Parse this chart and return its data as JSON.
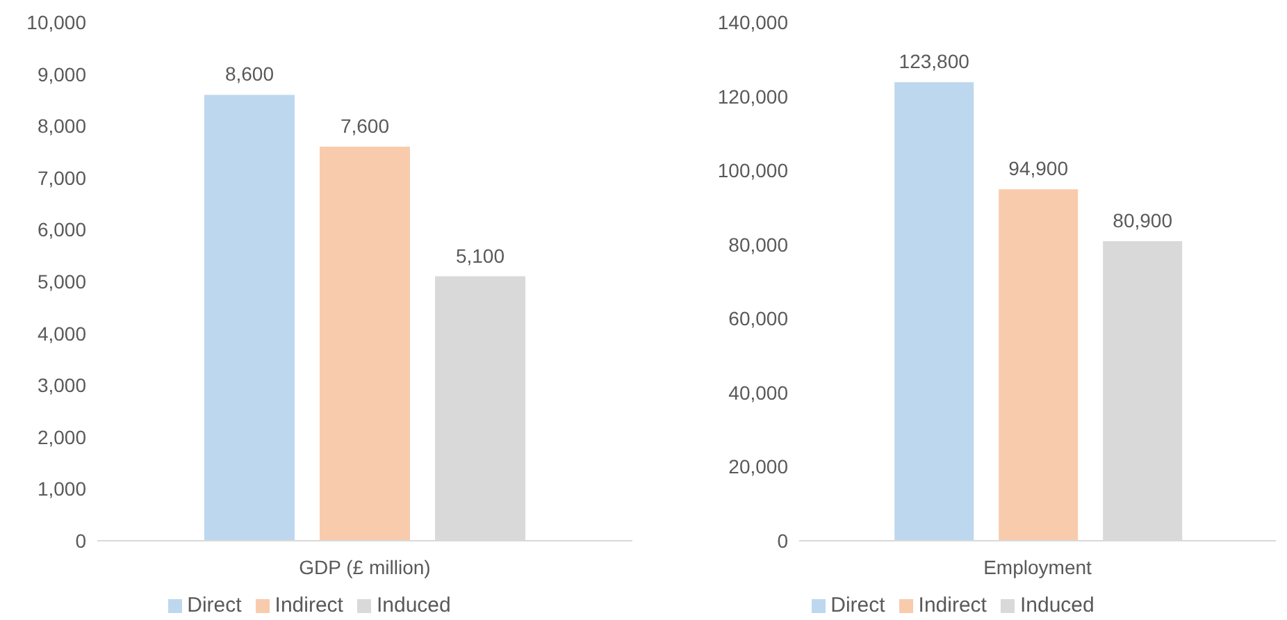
{
  "chart_data": [
    {
      "type": "bar",
      "categories": [
        "GDP (£ million)"
      ],
      "series": [
        {
          "name": "Direct",
          "color": "#bdd7ee",
          "values": [
            8600
          ]
        },
        {
          "name": "Indirect",
          "color": "#f8cbad",
          "values": [
            7600
          ]
        },
        {
          "name": "Induced",
          "color": "#d9d9d9",
          "values": [
            5100
          ]
        }
      ],
      "ylim": [
        0,
        10000
      ],
      "yticks": [
        {
          "value": 0,
          "label": "0"
        },
        {
          "value": 1000,
          "label": "1,000"
        },
        {
          "value": 2000,
          "label": "2,000"
        },
        {
          "value": 3000,
          "label": "3,000"
        },
        {
          "value": 4000,
          "label": "4,000"
        },
        {
          "value": 5000,
          "label": "5,000"
        },
        {
          "value": 6000,
          "label": "6,000"
        },
        {
          "value": 7000,
          "label": "7,000"
        },
        {
          "value": 8000,
          "label": "8,000"
        },
        {
          "value": 9000,
          "label": "9,000"
        },
        {
          "value": 10000,
          "label": "10,000"
        }
      ],
      "value_labels": [
        [
          "8,600"
        ],
        [
          "7,600"
        ],
        [
          "5,100"
        ]
      ],
      "grid": false,
      "legend": "bottom"
    },
    {
      "type": "bar",
      "categories": [
        "Employment"
      ],
      "series": [
        {
          "name": "Direct",
          "color": "#bdd7ee",
          "values": [
            123800
          ]
        },
        {
          "name": "Indirect",
          "color": "#f8cbad",
          "values": [
            94900
          ]
        },
        {
          "name": "Induced",
          "color": "#d9d9d9",
          "values": [
            80900
          ]
        }
      ],
      "ylim": [
        0,
        140000
      ],
      "yticks": [
        {
          "value": 0,
          "label": "0"
        },
        {
          "value": 20000,
          "label": "20,000"
        },
        {
          "value": 40000,
          "label": "40,000"
        },
        {
          "value": 60000,
          "label": "60,000"
        },
        {
          "value": 80000,
          "label": "80,000"
        },
        {
          "value": 100000,
          "label": "100,000"
        },
        {
          "value": 120000,
          "label": "120,000"
        },
        {
          "value": 140000,
          "label": "140,000"
        }
      ],
      "value_labels": [
        [
          "123,800"
        ],
        [
          "94,900"
        ],
        [
          "80,900"
        ]
      ],
      "grid": false,
      "legend": "bottom"
    }
  ]
}
